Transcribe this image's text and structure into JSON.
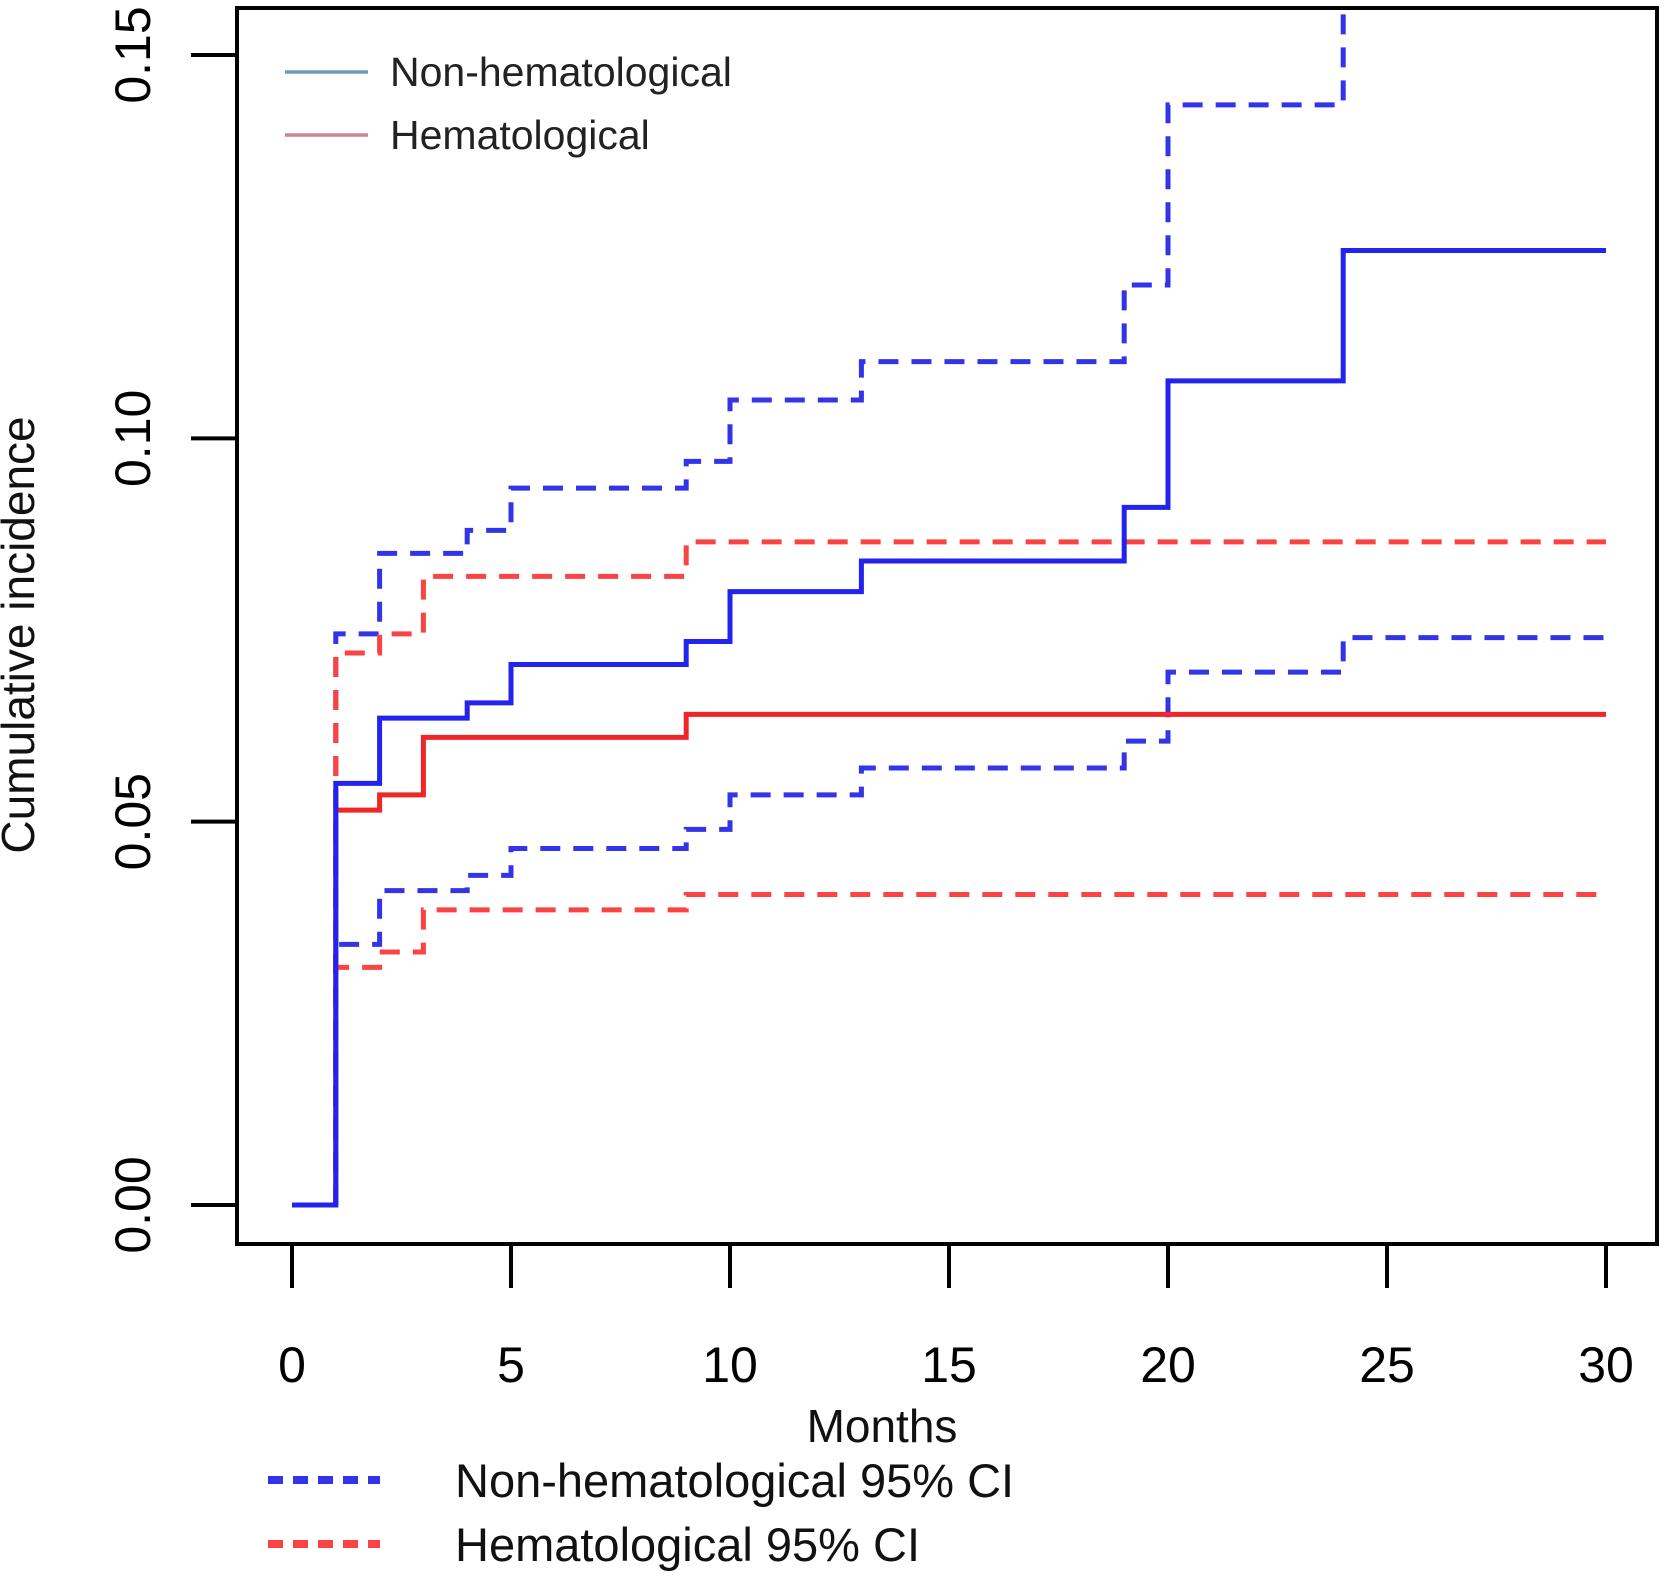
{
  "figure": {
    "y_axis_label": "Cumulative incidence",
    "x_axis_label": "Months",
    "top_legend": [
      {
        "label": "Non-hematological",
        "color": "#6f9cb6"
      },
      {
        "label": "Hematological",
        "color": "#ca8691"
      }
    ],
    "bottom_legend": [
      {
        "label": "Non-hematological 95% CI",
        "color": "#3333e8"
      },
      {
        "label": "Hematological 95% CI",
        "color": "#fb4343"
      }
    ],
    "colors": {
      "non_hematological_line": "#2323ee",
      "hematological_line": "#f02525",
      "non_hematological_ci": "#3333e8",
      "hematological_ci": "#fb4343",
      "axis": "#000000"
    }
  },
  "chart_data": {
    "type": "line",
    "subtype": "cumulative-incidence-step",
    "title": "",
    "xlabel": "Months",
    "ylabel": "Cumulative incidence",
    "xlim": [
      0,
      30
    ],
    "ylim": [
      0,
      0.15
    ],
    "x_ticks": [
      "0",
      "5",
      "10",
      "15",
      "20",
      "25",
      "30"
    ],
    "x_tick_values": [
      0,
      5,
      10,
      15,
      20,
      25,
      30
    ],
    "y_ticks": [
      "0.00",
      "0.05",
      "0.10",
      "0.15"
    ],
    "y_tick_values": [
      0,
      0.05,
      0.1,
      0.15
    ],
    "grid": false,
    "legend_position": "top-left and below-axis",
    "series": [
      {
        "name": "Non-hematological 95% CI upper",
        "style": "dashed",
        "color": "#3333e8",
        "origin": 1,
        "x_end": 30,
        "steps": [
          [
            1,
            0.0745
          ],
          [
            2,
            0.085
          ],
          [
            4,
            0.088
          ],
          [
            5,
            0.0935
          ],
          [
            9,
            0.097
          ],
          [
            10,
            0.105
          ],
          [
            13,
            0.11
          ],
          [
            19,
            0.12
          ],
          [
            20,
            0.1435
          ],
          [
            24,
            0.158
          ]
        ]
      },
      {
        "name": "Non-hematological 95% CI lower",
        "style": "dashed",
        "color": "#3333e8",
        "origin": 1,
        "x_end": 30,
        "steps": [
          [
            1,
            0.034
          ],
          [
            2,
            0.041
          ],
          [
            4,
            0.043
          ],
          [
            5,
            0.0465
          ],
          [
            9,
            0.049
          ],
          [
            10,
            0.0535
          ],
          [
            13,
            0.057
          ],
          [
            19,
            0.0605
          ],
          [
            20,
            0.0695
          ],
          [
            24,
            0.074
          ]
        ]
      },
      {
        "name": "Hematological 95% CI upper",
        "style": "dashed",
        "color": "#fb4343",
        "origin": 1,
        "x_end": 30,
        "steps": [
          [
            1,
            0.072
          ],
          [
            2,
            0.0745
          ],
          [
            3,
            0.082
          ],
          [
            9,
            0.0865
          ]
        ]
      },
      {
        "name": "Hematological 95% CI lower",
        "style": "dashed",
        "color": "#fb4343",
        "origin": 1,
        "x_end": 30,
        "steps": [
          [
            1,
            0.031
          ],
          [
            2,
            0.033
          ],
          [
            3,
            0.0385
          ],
          [
            9,
            0.0405
          ]
        ]
      },
      {
        "name": "Hematological",
        "style": "solid",
        "color": "#f02525",
        "origin": 1,
        "x_end": 30,
        "steps": [
          [
            1,
            0.0515
          ],
          [
            2,
            0.0535
          ],
          [
            3,
            0.061
          ],
          [
            9,
            0.064
          ]
        ]
      },
      {
        "name": "Non-hematological",
        "style": "solid",
        "color": "#2323ee",
        "origin": 0,
        "x_end": 30,
        "steps": [
          [
            1,
            0.055
          ],
          [
            2,
            0.0635
          ],
          [
            4,
            0.0655
          ],
          [
            5,
            0.0705
          ],
          [
            9,
            0.0735
          ],
          [
            10,
            0.08
          ],
          [
            13,
            0.084
          ],
          [
            19,
            0.091
          ],
          [
            20,
            0.1075
          ],
          [
            24,
            0.1245
          ]
        ]
      }
    ]
  }
}
